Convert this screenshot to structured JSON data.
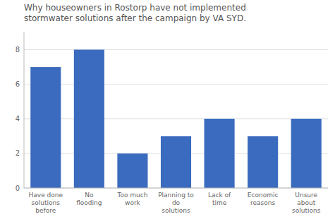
{
  "chart_data": {
    "type": "bar",
    "title": "Why houseowners in Rostorp have not implemented\nstormwater solutions after the campaign by VA SYD.",
    "categories": [
      "Have done\nsolutions\nbefore",
      "No\nflooding",
      "Too much\nwork",
      "Planning to\ndo\nsolutions",
      "Lack of\ntime",
      "Economic\nreasons",
      "Unsure\nabout\nsolutions"
    ],
    "values": [
      7,
      8,
      2,
      3,
      4,
      3,
      4
    ],
    "color": "#3a6bbf",
    "ylim": [
      0,
      9
    ],
    "yticks": [
      0,
      2,
      4,
      6,
      8
    ],
    "grid": true
  }
}
